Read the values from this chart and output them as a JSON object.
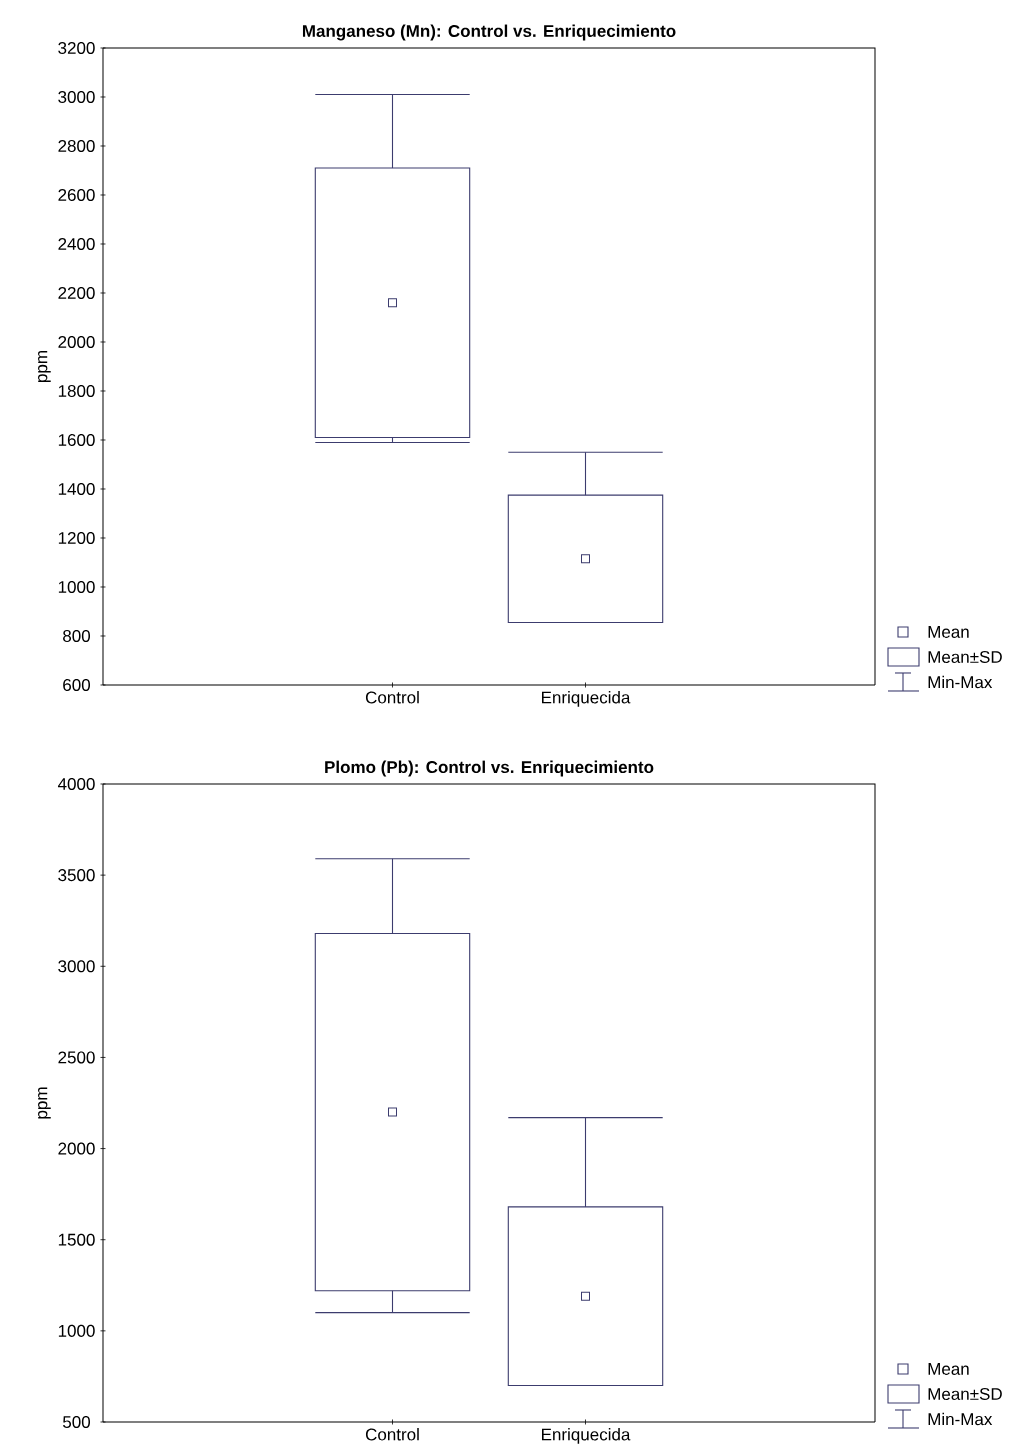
{
  "chart_data": [
    {
      "type": "box",
      "title": "Manganeso (Mn): Control vs. Enriquecimiento",
      "ylabel": "ppm",
      "categories": [
        "Control",
        "Enriquecida"
      ],
      "color": "#3c3c6e",
      "boxes": [
        {
          "low": 1590,
          "q1": 1610,
          "q3": 2710,
          "high": 3010,
          "mean": 2160
        },
        {
          "low": 855,
          "q1": 855,
          "q3": 1375,
          "high": 1550,
          "mean": 1115
        }
      ],
      "ylim": [
        600,
        3200
      ],
      "yticks": [
        {
          "value": 600,
          "label": "600"
        },
        {
          "value": 800,
          "label": "800"
        },
        {
          "value": 1000,
          "label": "1000"
        },
        {
          "value": 1200,
          "label": "1200"
        },
        {
          "value": 1400,
          "label": "1400"
        },
        {
          "value": 1600,
          "label": "1600"
        },
        {
          "value": 1800,
          "label": "1800"
        },
        {
          "value": 2000,
          "label": "2000"
        },
        {
          "value": 2200,
          "label": "2200"
        },
        {
          "value": 2400,
          "label": "2400"
        },
        {
          "value": 2600,
          "label": "2600"
        },
        {
          "value": 2800,
          "label": "2800"
        },
        {
          "value": 3000,
          "label": "3000"
        },
        {
          "value": 3200,
          "label": "3200"
        }
      ],
      "marker": "square",
      "annotations": [
        "Mean",
        "Mean±SD",
        "Min-Max"
      ]
    },
    {
      "type": "box",
      "title": "Plomo (Pb): Control vs. Enriquecimiento",
      "ylabel": "ppm",
      "categories": [
        "Control",
        "Enriquecida"
      ],
      "color": "#3c3c6e",
      "boxes": [
        {
          "low": 1100,
          "q1": 1220,
          "q3": 3180,
          "high": 3590,
          "mean": 2200
        },
        {
          "low": 700,
          "q1": 700,
          "q3": 1680,
          "high": 2170,
          "mean": 1190
        }
      ],
      "ylim": [
        500,
        4000
      ],
      "yticks": [
        {
          "value": 500,
          "label": "500"
        },
        {
          "value": 1000,
          "label": "1000"
        },
        {
          "value": 1500,
          "label": "1500"
        },
        {
          "value": 2000,
          "label": "2000"
        },
        {
          "value": 2500,
          "label": "2500"
        },
        {
          "value": 3000,
          "label": "3000"
        },
        {
          "value": 3500,
          "label": "3500"
        },
        {
          "value": 4000,
          "label": "4000"
        }
      ],
      "marker": "square",
      "annotations": [
        "Mean",
        "Mean±SD",
        "Min-Max"
      ]
    }
  ]
}
